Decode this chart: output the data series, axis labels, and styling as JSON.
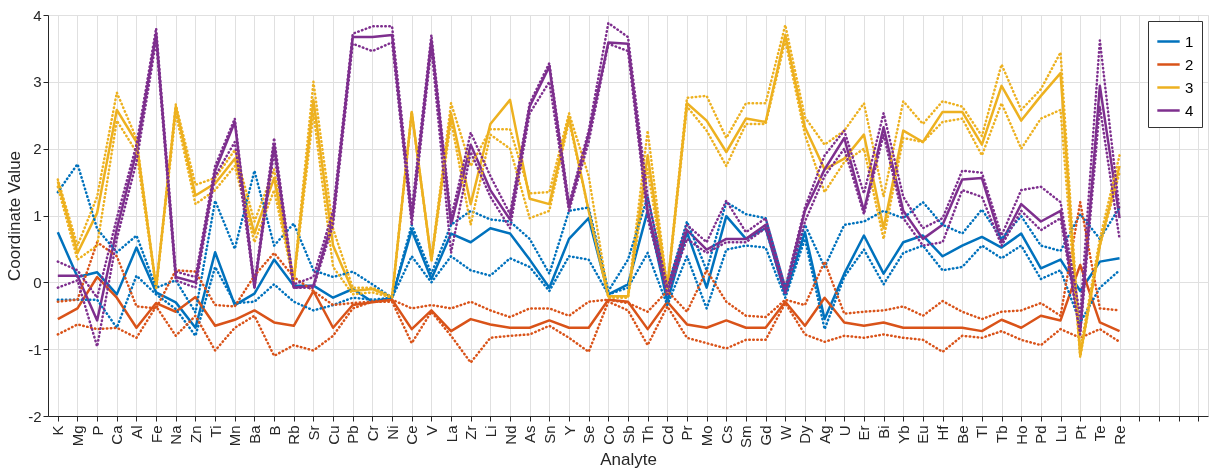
{
  "chart_data": {
    "type": "line",
    "xlabel": "Analyte",
    "ylabel": "Coordinate Value",
    "categories": [
      "K",
      "Mg",
      "P",
      "Ca",
      "Al",
      "Fe",
      "Na",
      "Zn",
      "Ti",
      "Mn",
      "Ba",
      "B",
      "Rb",
      "Sr",
      "Cu",
      "Pb",
      "Cr",
      "Ni",
      "Ce",
      "V",
      "La",
      "Zr",
      "Li",
      "Nd",
      "As",
      "Sn",
      "Y",
      "Se",
      "Co",
      "Sb",
      "Th",
      "Cd",
      "Pr",
      "Mo",
      "Cs",
      "Sm",
      "Gd",
      "W",
      "Dy",
      "Ag",
      "U",
      "Er",
      "Bi",
      "Yb",
      "Eu",
      "Hf",
      "Be",
      "Tl",
      "Tb",
      "Ho",
      "Pd",
      "Lu",
      "Pt",
      "Te",
      "Re"
    ],
    "ylim": [
      -2,
      4
    ],
    "yticks": [
      -2,
      -1,
      0,
      1,
      2,
      3,
      4
    ],
    "grid": true,
    "legend": "top right",
    "series": [
      {
        "name": "1",
        "color": "#0072bd",
        "values": [
          0.75,
          0.08,
          0.15,
          -0.18,
          0.52,
          -0.15,
          -0.3,
          -0.68,
          0.45,
          -0.34,
          -0.17,
          0.34,
          -0.05,
          -0.05,
          -0.23,
          -0.1,
          -0.29,
          -0.23,
          0.78,
          0.05,
          0.73,
          0.6,
          0.81,
          0.73,
          0.34,
          -0.08,
          0.65,
          0.96,
          -0.18,
          -0.03,
          1.07,
          -0.29,
          0.75,
          -0.08,
          0.99,
          0.65,
          0.81,
          -0.18,
          0.75,
          -0.55,
          0.13,
          0.7,
          0.13,
          0.6,
          0.7,
          0.39,
          0.55,
          0.68,
          0.52,
          0.73,
          0.21,
          0.34,
          -0.13,
          0.31,
          0.36
        ]
      },
      {
        "name": "2",
        "color": "#d95319",
        "values": [
          -0.55,
          -0.39,
          0.08,
          -0.23,
          -0.68,
          -0.31,
          -0.44,
          -0.22,
          -0.65,
          -0.56,
          -0.42,
          -0.6,
          -0.65,
          -0.13,
          -0.68,
          -0.34,
          -0.3,
          -0.26,
          -0.7,
          -0.42,
          -0.73,
          -0.55,
          -0.63,
          -0.68,
          -0.68,
          -0.57,
          -0.68,
          -0.68,
          -0.26,
          -0.29,
          -0.7,
          -0.29,
          -0.63,
          -0.68,
          -0.57,
          -0.68,
          -0.68,
          -0.29,
          -0.65,
          -0.23,
          -0.6,
          -0.65,
          -0.6,
          -0.68,
          -0.68,
          -0.68,
          -0.68,
          -0.73,
          -0.56,
          -0.68,
          -0.5,
          -0.57,
          0.26,
          -0.6,
          -0.73
        ]
      },
      {
        "name": "3",
        "color": "#edb120",
        "values": [
          1.51,
          0.44,
          1.04,
          2.58,
          2.1,
          -0.08,
          2.63,
          1.3,
          1.48,
          1.85,
          0.73,
          1.56,
          0.03,
          2.73,
          0.55,
          -0.13,
          -0.1,
          -0.22,
          2.55,
          0.34,
          2.53,
          1.17,
          2.37,
          2.73,
          1.25,
          1.17,
          2.47,
          1.07,
          -0.21,
          -0.21,
          1.9,
          -0.08,
          2.68,
          2.42,
          1.95,
          2.45,
          2.4,
          3.7,
          2.32,
          1.69,
          1.85,
          2.21,
          0.81,
          2.27,
          2.1,
          2.55,
          2.55,
          2.06,
          2.94,
          2.42,
          2.79,
          3.13,
          -1.09,
          0.55,
          1.74
        ]
      },
      {
        "name": "4",
        "color": "#7e2f8e",
        "values": [
          0.1,
          0.1,
          -0.57,
          0.8,
          1.95,
          3.72,
          0.08,
          0.0,
          1.67,
          2.4,
          -0.08,
          2.06,
          -0.08,
          -0.05,
          0.96,
          3.67,
          3.67,
          3.7,
          0.96,
          3.62,
          0.86,
          2.06,
          1.38,
          0.94,
          2.63,
          3.23,
          1.12,
          2.21,
          3.59,
          3.57,
          1.07,
          -0.13,
          0.78,
          0.49,
          0.65,
          0.65,
          0.86,
          -0.13,
          1.07,
          1.69,
          2.16,
          1.07,
          2.32,
          1.07,
          0.65,
          0.86,
          1.54,
          1.56,
          0.6,
          1.17,
          0.91,
          1.07,
          -0.73,
          2.94,
          0.96
        ]
      },
      {
        "color": "#0072bd",
        "line_style": "dotted",
        "values": [
          1.35,
          1.77,
          0.8,
          0.45,
          0.7,
          -0.08,
          0.03,
          -0.45,
          1.22,
          0.5,
          1.67,
          0.55,
          0.88,
          0.18,
          0.08,
          0.16,
          -0.03,
          -0.23,
          0.86,
          0.13,
          0.86,
          1.07,
          0.94,
          0.91,
          0.65,
          0.13,
          1.07,
          1.12,
          -0.13,
          0.34,
          1.28,
          -0.08,
          0.91,
          0.18,
          1.2,
          1.02,
          0.96,
          -0.08,
          0.86,
          0.23,
          0.86,
          0.91,
          1.07,
          0.96,
          1.2,
          0.86,
          0.73,
          1.09,
          0.65,
          0.99,
          0.55,
          0.47,
          1.02,
          0.65,
          1.12
        ]
      },
      {
        "color": "#0072bd",
        "line_style": "dotted",
        "values": [
          -0.26,
          -0.26,
          -0.26,
          -0.68,
          0.1,
          -0.18,
          -0.4,
          -0.8,
          0.23,
          -0.31,
          -0.29,
          -0.03,
          -0.29,
          -0.42,
          -0.34,
          -0.23,
          -0.26,
          -0.23,
          0.39,
          0.0,
          0.39,
          0.18,
          0.1,
          0.36,
          0.23,
          -0.13,
          0.39,
          0.34,
          -0.18,
          -0.08,
          0.44,
          -0.34,
          0.39,
          -0.39,
          0.49,
          0.55,
          0.52,
          -0.23,
          0.65,
          -0.7,
          0.08,
          0.49,
          -0.03,
          0.44,
          0.55,
          0.18,
          0.23,
          0.55,
          0.36,
          0.55,
          0.05,
          0.18,
          -0.6,
          -0.08,
          0.18
        ]
      },
      {
        "color": "#d95319",
        "line_style": "dotted",
        "values": [
          -0.29,
          -0.26,
          0.6,
          0.39,
          -0.36,
          -0.39,
          0.18,
          0.16,
          -0.34,
          -0.36,
          0.1,
          0.44,
          0.08,
          -0.13,
          -0.34,
          -0.31,
          -0.29,
          -0.26,
          -0.39,
          -0.34,
          -0.39,
          -0.29,
          -0.42,
          -0.52,
          -0.39,
          -0.39,
          -0.5,
          -0.29,
          -0.26,
          -0.31,
          -0.44,
          -0.13,
          -0.44,
          0.18,
          -0.29,
          -0.5,
          -0.52,
          -0.26,
          -0.34,
          0.31,
          -0.47,
          -0.44,
          -0.42,
          -0.36,
          -0.5,
          -0.28,
          -0.44,
          -0.55,
          -0.44,
          -0.42,
          -0.31,
          -0.5,
          1.2,
          -0.39,
          -0.42
        ]
      },
      {
        "color": "#d95319",
        "line_style": "dotted",
        "values": [
          -0.78,
          -0.63,
          -0.7,
          -0.68,
          -0.83,
          -0.36,
          -0.8,
          -0.5,
          -1.02,
          -0.68,
          -0.5,
          -1.1,
          -0.94,
          -1.02,
          -0.8,
          -0.39,
          -0.29,
          -0.29,
          -0.91,
          -0.44,
          -0.8,
          -1.2,
          -0.83,
          -0.8,
          -0.78,
          -0.65,
          -0.83,
          -1.04,
          -0.29,
          -0.42,
          -0.94,
          -0.36,
          -0.83,
          -0.91,
          -0.99,
          -0.86,
          -0.86,
          -0.31,
          -0.78,
          -0.89,
          -0.8,
          -0.83,
          -0.78,
          -0.83,
          -0.86,
          -1.04,
          -0.8,
          -0.83,
          -0.73,
          -0.86,
          -0.94,
          -0.7,
          -0.83,
          -0.7,
          -0.89
        ]
      },
      {
        "color": "#edb120",
        "line_style": "dotted",
        "values": [
          1.54,
          0.55,
          1.28,
          2.84,
          2.15,
          -0.08,
          2.66,
          1.46,
          1.56,
          1.98,
          0.91,
          1.69,
          0.03,
          3.0,
          0.8,
          -0.08,
          -0.08,
          -0.22,
          2.55,
          0.34,
          2.68,
          1.74,
          2.29,
          2.29,
          1.33,
          1.35,
          2.53,
          1.59,
          -0.21,
          -0.21,
          2.27,
          -0.08,
          2.76,
          2.79,
          2.16,
          2.68,
          2.68,
          3.85,
          2.47,
          2.06,
          2.27,
          2.68,
          1.28,
          2.71,
          2.37,
          2.71,
          2.63,
          2.19,
          3.26,
          2.58,
          2.89,
          3.44,
          -1.02,
          0.65,
          1.9
        ]
      },
      {
        "color": "#edb120",
        "line_style": "dotted",
        "values": [
          1.43,
          0.34,
          0.55,
          2.42,
          1.95,
          -0.08,
          2.53,
          1.17,
          1.38,
          1.74,
          0.6,
          1.38,
          0.0,
          2.53,
          0.23,
          -0.18,
          -0.15,
          -0.23,
          2.53,
          0.31,
          2.42,
          0.86,
          2.21,
          2.0,
          0.96,
          1.07,
          2.42,
          1.07,
          -0.23,
          -0.23,
          1.69,
          -0.13,
          2.63,
          2.27,
          1.74,
          2.37,
          2.37,
          3.62,
          2.21,
          1.35,
          1.8,
          2.0,
          0.65,
          2.16,
          2.1,
          2.4,
          2.45,
          1.9,
          2.68,
          2.0,
          2.45,
          2.58,
          -1.12,
          0.55,
          1.64
        ]
      },
      {
        "color": "#7e2f8e",
        "line_style": "dotted",
        "values": [
          0.31,
          0.18,
          -0.23,
          0.96,
          2.06,
          3.8,
          0.16,
          0.08,
          1.74,
          2.45,
          -0.03,
          2.16,
          -0.03,
          0.08,
          1.07,
          3.72,
          3.83,
          3.83,
          1.07,
          3.7,
          0.96,
          2.24,
          1.59,
          1.02,
          2.68,
          3.28,
          1.17,
          2.27,
          3.88,
          3.67,
          1.28,
          -0.08,
          0.86,
          0.6,
          1.22,
          0.75,
          0.96,
          -0.08,
          1.12,
          1.9,
          2.27,
          1.33,
          2.53,
          1.28,
          0.81,
          0.96,
          1.67,
          1.64,
          0.7,
          1.38,
          1.43,
          1.2,
          -0.5,
          3.62,
          1.07
        ]
      },
      {
        "color": "#7e2f8e",
        "line_style": "dotted",
        "values": [
          -0.08,
          0.03,
          -0.96,
          0.65,
          1.8,
          3.62,
          0.03,
          -0.08,
          1.59,
          2.1,
          -0.08,
          1.95,
          -0.08,
          -0.08,
          0.86,
          3.57,
          3.46,
          3.59,
          0.86,
          3.51,
          0.44,
          1.95,
          1.28,
          0.81,
          2.53,
          3.0,
          1.07,
          2.1,
          3.57,
          3.46,
          0.96,
          -0.18,
          0.65,
          0.44,
          0.6,
          0.6,
          0.81,
          -0.18,
          0.91,
          1.59,
          2.0,
          1.02,
          2.21,
          0.96,
          0.55,
          0.6,
          1.38,
          1.28,
          0.55,
          1.07,
          0.78,
          0.96,
          -0.78,
          2.63,
          0.65
        ]
      }
    ]
  }
}
